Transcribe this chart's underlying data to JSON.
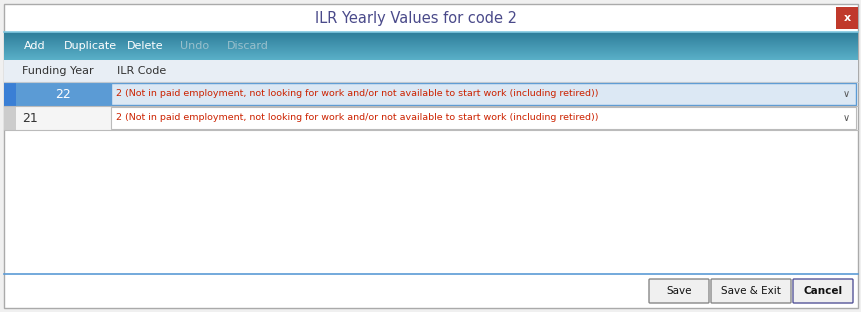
{
  "title": "ILR Yearly Values for code 2",
  "title_color": "#4a4a8a",
  "title_fontsize": 10.5,
  "bg_color": "#f0f0f0",
  "outer_border_color": "#aaaaaa",
  "toolbar_color_top": "#2e7d9a",
  "toolbar_color_bot": "#5ab0c8",
  "toolbar_items": [
    "Add",
    "Duplicate",
    "Delete",
    "Undo",
    "Discard"
  ],
  "toolbar_active_color": "#ffffff",
  "toolbar_inactive_color": "#99c0cc",
  "header_bg": "#e8eef5",
  "header_border": "#c0c8d0",
  "header_cols": [
    "Funding Year",
    "ILR Code"
  ],
  "header_text_color": "#333333",
  "row1_year": "22",
  "row2_year": "21",
  "row_text": "2 (Not in paid employment, not looking for work and/or not available to start work (including retired))",
  "row1_sel_color": "#5b9bd5",
  "row1_ilr_bg": "#dce8f4",
  "row1_border_color": "#5b9bd5",
  "row2_year_bg": "#f5f5f5",
  "row2_ilr_bg": "#ffffff",
  "row2_border_color": "#bbbbbb",
  "row_text_color": "#cc2200",
  "row_year_text_sel": "#ffffff",
  "row_year_text_norm": "#333333",
  "close_btn_color": "#c0392b",
  "separator_color": "#5b9bd5",
  "btn_save": "Save",
  "btn_save_exit": "Save & Exit",
  "btn_cancel": "Cancel",
  "indicator_color_sel": "#3a7fd5",
  "indicator_color_norm": "#cccccc"
}
